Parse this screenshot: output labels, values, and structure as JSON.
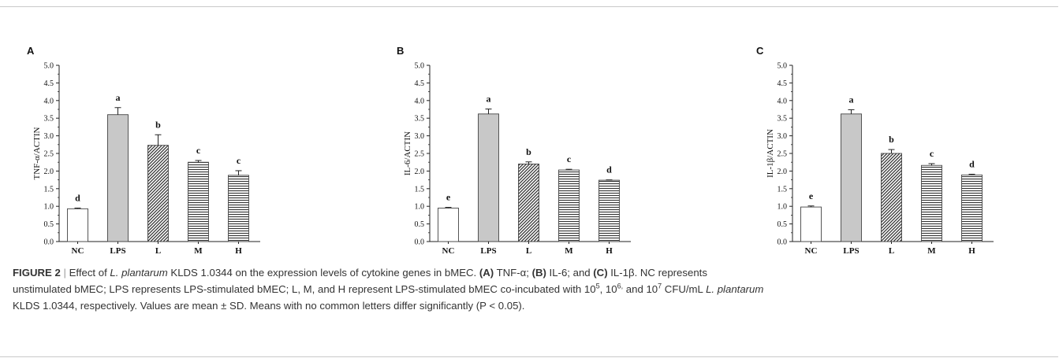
{
  "chart_data": [
    {
      "type": "bar",
      "panel": "A",
      "categories": [
        "NC",
        "LPS",
        "L",
        "M",
        "H"
      ],
      "values": [
        0.93,
        3.6,
        2.73,
        2.25,
        1.88
      ],
      "errors": [
        0.02,
        0.2,
        0.3,
        0.05,
        0.13
      ],
      "letters": [
        "d",
        "a",
        "b",
        "c",
        "c"
      ],
      "ylabel": "TNF-α/ACTIN",
      "ylim": [
        0,
        5
      ],
      "yticks": [
        "0.0",
        "0.5",
        "1.0",
        "1.5",
        "2.0",
        "2.5",
        "3.0",
        "3.5",
        "4.0",
        "4.5",
        "5.0"
      ],
      "patterns": [
        "white",
        "gray",
        "diagonal",
        "horizontal",
        "horizontal"
      ]
    },
    {
      "type": "bar",
      "panel": "B",
      "categories": [
        "NC",
        "LPS",
        "L",
        "M",
        "H"
      ],
      "values": [
        0.95,
        3.62,
        2.2,
        2.03,
        1.74
      ],
      "errors": [
        0.02,
        0.14,
        0.06,
        0.02,
        0.01
      ],
      "letters": [
        "e",
        "a",
        "b",
        "c",
        "d"
      ],
      "ylabel": "IL-6/ACTIN",
      "ylim": [
        0,
        5
      ],
      "yticks": [
        "0.0",
        "0.5",
        "1.0",
        "1.5",
        "2.0",
        "2.5",
        "3.0",
        "3.5",
        "4.0",
        "4.5",
        "5.0"
      ],
      "patterns": [
        "white",
        "gray",
        "diagonal",
        "horizontal",
        "horizontal"
      ]
    },
    {
      "type": "bar",
      "panel": "C",
      "categories": [
        "NC",
        "LPS",
        "L",
        "M",
        "H"
      ],
      "values": [
        0.98,
        3.62,
        2.5,
        2.16,
        1.89
      ],
      "errors": [
        0.03,
        0.12,
        0.11,
        0.05,
        0.02
      ],
      "letters": [
        "e",
        "a",
        "b",
        "c",
        "d"
      ],
      "ylabel": "IL-1β/ACTIN",
      "ylim": [
        0,
        5
      ],
      "yticks": [
        "0.0",
        "0.5",
        "1.0",
        "1.5",
        "2.0",
        "2.5",
        "3.0",
        "3.5",
        "4.0",
        "4.5",
        "5.0"
      ],
      "patterns": [
        "white",
        "gray",
        "diagonal",
        "horizontal",
        "horizontal"
      ]
    }
  ],
  "colors": {
    "lps_fill": "#c8c8c8",
    "stroke": "#222222",
    "caption_text": "#333333"
  },
  "caption": {
    "label": "FIGURE 2",
    "sep": "|",
    "t1": "Effect of ",
    "species": "L. plantarum",
    "t2": " KLDS 1.0344 on the expression levels of cytokine genes in bMEC. ",
    "a": "(A)",
    "a_txt": " TNF-α; ",
    "b": "(B)",
    "b_txt": " IL-6; and ",
    "c": "(C)",
    "c_txt": " IL-1β. NC represents",
    "line2a": "unstimulated bMEC; LPS represents LPS-stimulated bMEC; L, M, and H represent LPS-stimulated bMEC co-incubated with 10",
    "exp1": "5",
    "line2b": ", 10",
    "exp2": "6,",
    "line2c": " and 10",
    "exp3": "7",
    "line2d": " CFU/mL ",
    "species2": "L. plantarum",
    "line3": "KLDS 1.0344, respectively. Values are mean ± SD. Means with no common letters differ significantly (P < 0.05)."
  }
}
